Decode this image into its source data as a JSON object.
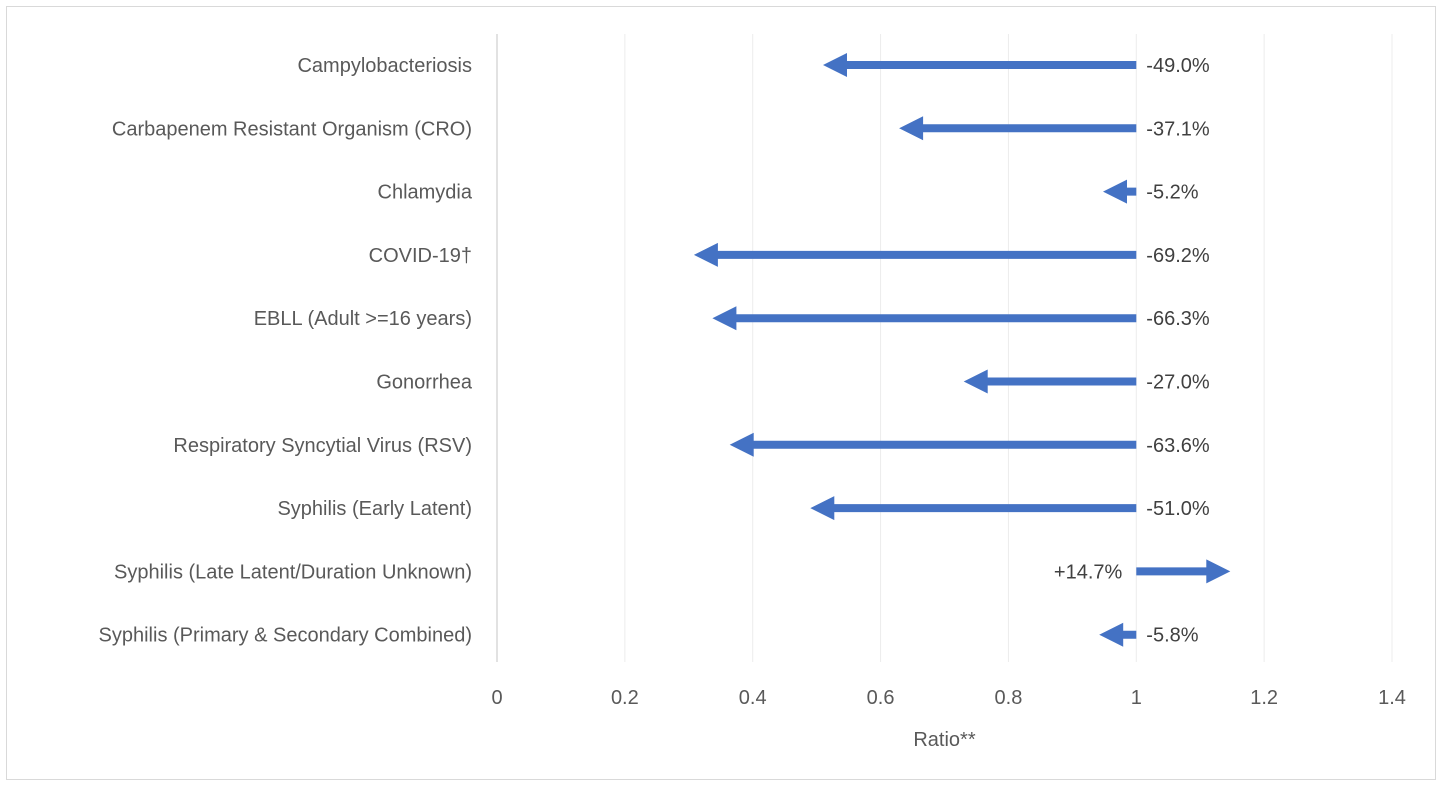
{
  "chart_data": {
    "type": "bar",
    "subtype": "arrow-ratio",
    "title": "",
    "xlabel": "Ratio**",
    "ylabel": "",
    "baseline": 1,
    "xlim": [
      0,
      1.4
    ],
    "x_ticks": [
      0,
      0.2,
      0.4,
      0.6,
      0.8,
      1,
      1.2,
      1.4
    ],
    "x_tick_labels": [
      "0",
      "0.2",
      "0.4",
      "0.6",
      "0.8",
      "1",
      "1.2",
      "1.4"
    ],
    "grid": true,
    "legend": "none",
    "arrow_color": "#4472C4",
    "categories": [
      "Campylobacteriosis",
      "Carbapenem Resistant Organism (CRO)",
      "Chlamydia",
      "COVID-19†",
      "EBLL (Adult >=16 years)",
      "Gonorrhea",
      "Respiratory Syncytial Virus (RSV)",
      "Syphilis (Early Latent)",
      "Syphilis (Late Latent/Duration Unknown)",
      "Syphilis (Primary & Secondary Combined)"
    ],
    "values": [
      0.51,
      0.629,
      0.948,
      0.308,
      0.337,
      0.73,
      0.364,
      0.49,
      1.147,
      0.942
    ],
    "data_labels": [
      "-49.0%",
      "-37.1%",
      "-5.2%",
      "-69.2%",
      "-66.3%",
      "-27.0%",
      "-63.6%",
      "-51.0%",
      "+14.7%",
      "-5.8%"
    ]
  }
}
